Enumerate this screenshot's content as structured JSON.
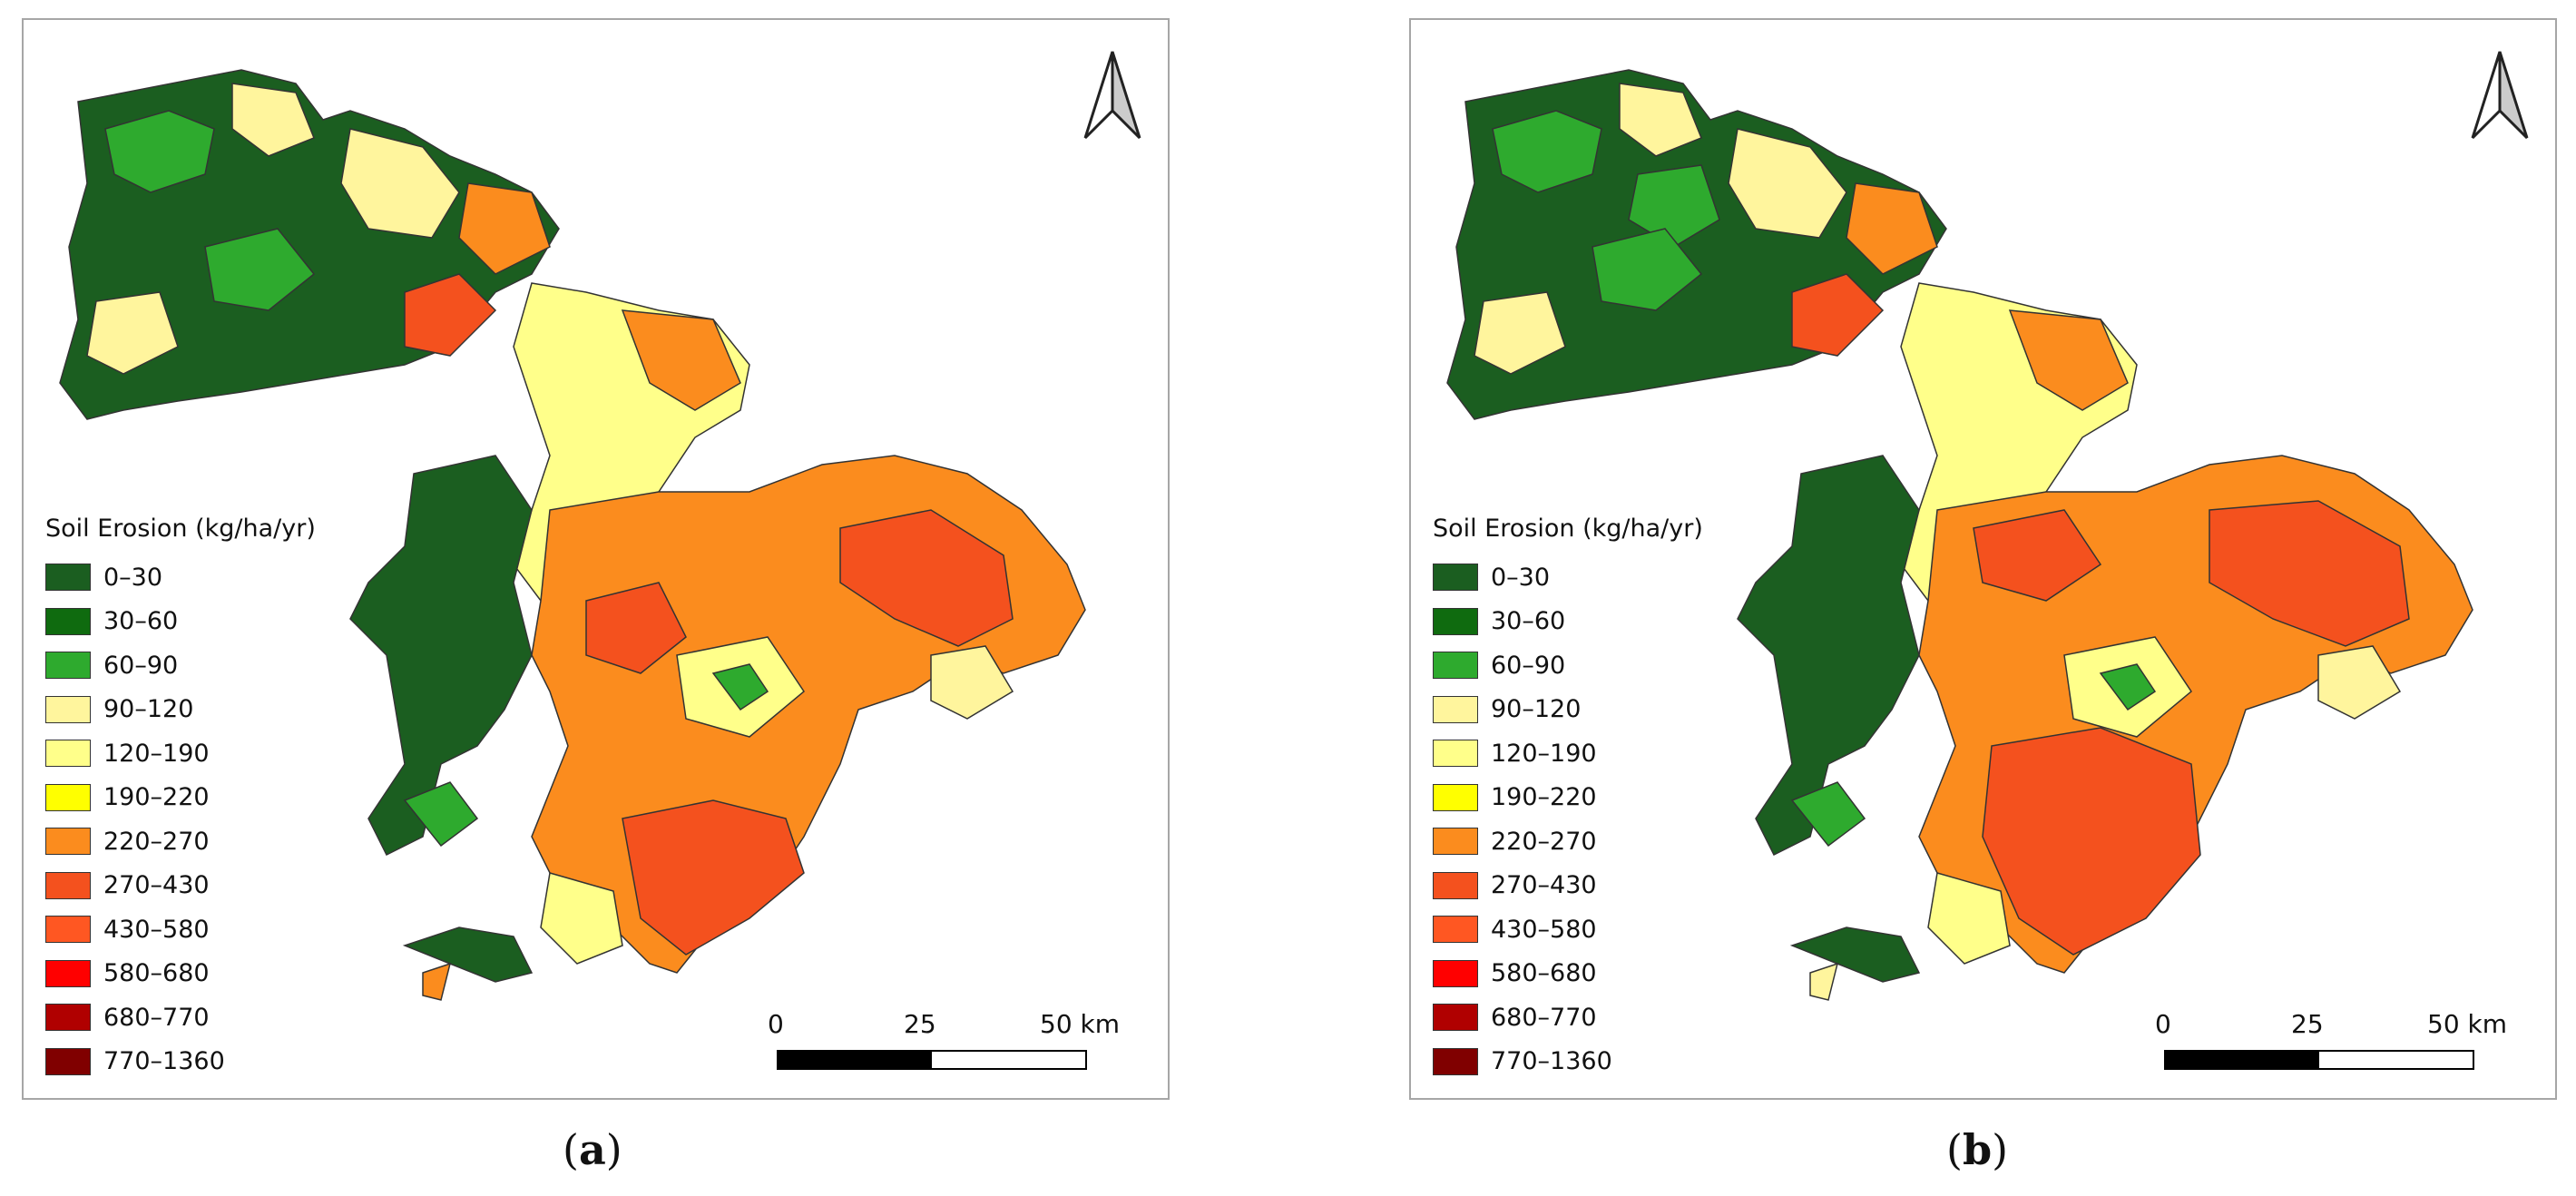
{
  "legend": {
    "title": "Soil Erosion (kg/ha/yr)",
    "classes": [
      {
        "label": "0–30",
        "color": "#1b5e20"
      },
      {
        "label": "30–60",
        "color": "#0f6b0f"
      },
      {
        "label": "60–90",
        "color": "#2eaa2e"
      },
      {
        "label": "90–120",
        "color": "#fff59d"
      },
      {
        "label": "120–190",
        "color": "#ffff8a"
      },
      {
        "label": "190–220",
        "color": "#ffff00"
      },
      {
        "label": "220–270",
        "color": "#fb8c1e"
      },
      {
        "label": "270–430",
        "color": "#f4511e"
      },
      {
        "label": "430–580",
        "color": "#ff5722"
      },
      {
        "label": "580–680",
        "color": "#ff0000"
      },
      {
        "label": "680–770",
        "color": "#b00000"
      },
      {
        "label": "770–1360",
        "color": "#800000"
      }
    ]
  },
  "scale": {
    "ticks": [
      "0",
      "25",
      "50 km"
    ]
  },
  "panels": [
    {
      "id": "a",
      "caption_open": "(",
      "caption_letter": "a",
      "caption_close": ")"
    },
    {
      "id": "b",
      "caption_open": "(",
      "caption_letter": "b",
      "caption_close": ")"
    }
  ],
  "north_arrow_icon": "north-arrow-icon"
}
